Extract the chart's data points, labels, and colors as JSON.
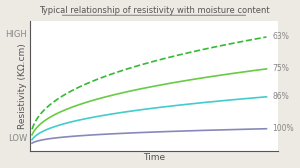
{
  "title": "Typical relationship of resistivity with moisture content",
  "xlabel": "Time",
  "ylabel": "Resistivity (KΩ.cm)",
  "y_low_label": "LOW",
  "y_high_label": "HIGH",
  "background_color": "#ede9e3",
  "plot_background": "#ffffff",
  "curves": [
    {
      "label": "63%",
      "color": "#33bb33",
      "style": "dashed",
      "a": 2.8,
      "b": 0.38
    },
    {
      "label": "75%",
      "color": "#66cc44",
      "style": "solid",
      "a": 2.0,
      "b": 0.38
    },
    {
      "label": "86%",
      "color": "#44cccc",
      "style": "solid",
      "a": 1.3,
      "b": 0.38
    },
    {
      "label": "100%",
      "color": "#8888bb",
      "style": "solid",
      "a": 0.5,
      "b": 0.28
    }
  ],
  "title_fontsize": 6.0,
  "label_fontsize": 6.5,
  "tick_label_fontsize": 6,
  "annotation_fontsize": 5.5
}
